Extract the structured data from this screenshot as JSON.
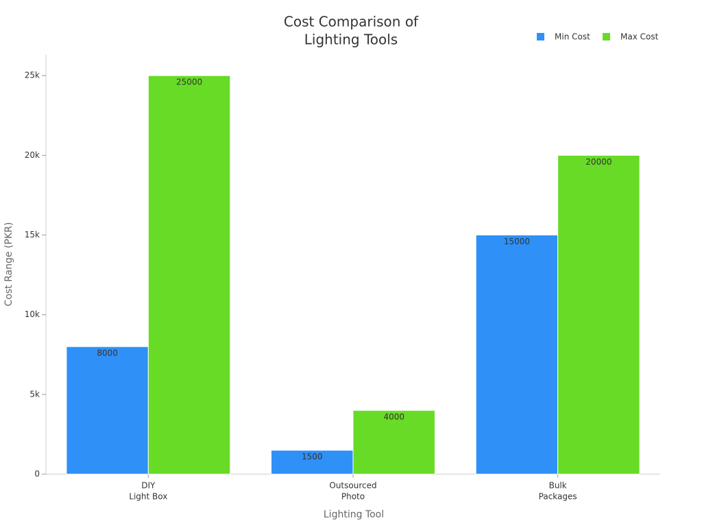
{
  "chart_data": {
    "type": "bar",
    "title": [
      "Cost Comparison of",
      "Lighting Tools"
    ],
    "categories": [
      [
        "DIY",
        "Light Box"
      ],
      [
        "Outsourced",
        "Photo"
      ],
      [
        "Bulk",
        "Packages"
      ]
    ],
    "series": [
      {
        "name": "Min Cost",
        "color": "#2f90f7",
        "values": [
          8000,
          1500,
          15000
        ]
      },
      {
        "name": "Max Cost",
        "color": "#67db26",
        "values": [
          25000,
          4000,
          20000
        ]
      }
    ],
    "x_label": "Lighting Tool",
    "y_label": "Cost Range (PKR)",
    "ylim": [
      0,
      26300
    ],
    "yticks": [
      0,
      {
        "value": 5000,
        "label": "5k"
      },
      {
        "value": 10000,
        "label": "10k"
      },
      {
        "value": 15000,
        "label": "15k"
      },
      {
        "value": 20000,
        "label": "20k"
      },
      {
        "value": 25000,
        "label": "25k"
      }
    ],
    "legend": "top-right",
    "data_labels": true
  }
}
